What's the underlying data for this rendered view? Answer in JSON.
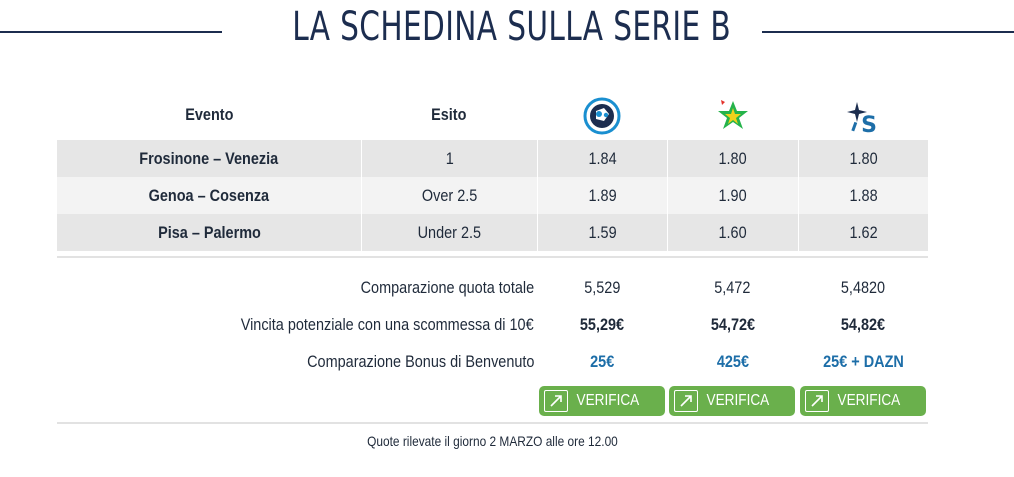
{
  "header": {
    "title": "LA SCHEDINA SULLA SERIE B"
  },
  "table": {
    "headers": {
      "event": "Evento",
      "outcome": "Esito"
    },
    "bookmakers": [
      {
        "icon": "soccer-ball-logo-icon",
        "color": "#1a8fd0"
      },
      {
        "icon": "star-logo-icon",
        "color": "#25b34b"
      },
      {
        "icon": "s-star-logo-icon",
        "color": "#1d6ea8"
      }
    ],
    "rows": [
      {
        "event": "Frosinone – Venezia",
        "outcome": "1",
        "odds": [
          "1.84",
          "1.80",
          "1.80"
        ]
      },
      {
        "event": "Genoa – Cosenza",
        "outcome": "Over 2.5",
        "odds": [
          "1.89",
          "1.90",
          "1.88"
        ]
      },
      {
        "event": "Pisa – Palermo",
        "outcome": "Under 2.5",
        "odds": [
          "1.59",
          "1.60",
          "1.62"
        ]
      }
    ]
  },
  "summary": {
    "total_label": "Comparazione quota totale",
    "total_values": [
      "5,529",
      "5,472",
      "5,4820"
    ],
    "win_label": "Vincita potenziale con una scommessa di 10€",
    "win_values": [
      "55,29€",
      "54,72€",
      "54,82€"
    ],
    "bonus_label": "Comparazione Bonus di Benvenuto",
    "bonus_values": [
      "25€",
      "425€",
      "25€ + DAZN"
    ]
  },
  "buttons": {
    "verify_label": "VERIFICA",
    "color": "#6ab04c"
  },
  "footer": {
    "note": "Quote rilevate il giorno 2 MARZO alle ore 12.00"
  }
}
